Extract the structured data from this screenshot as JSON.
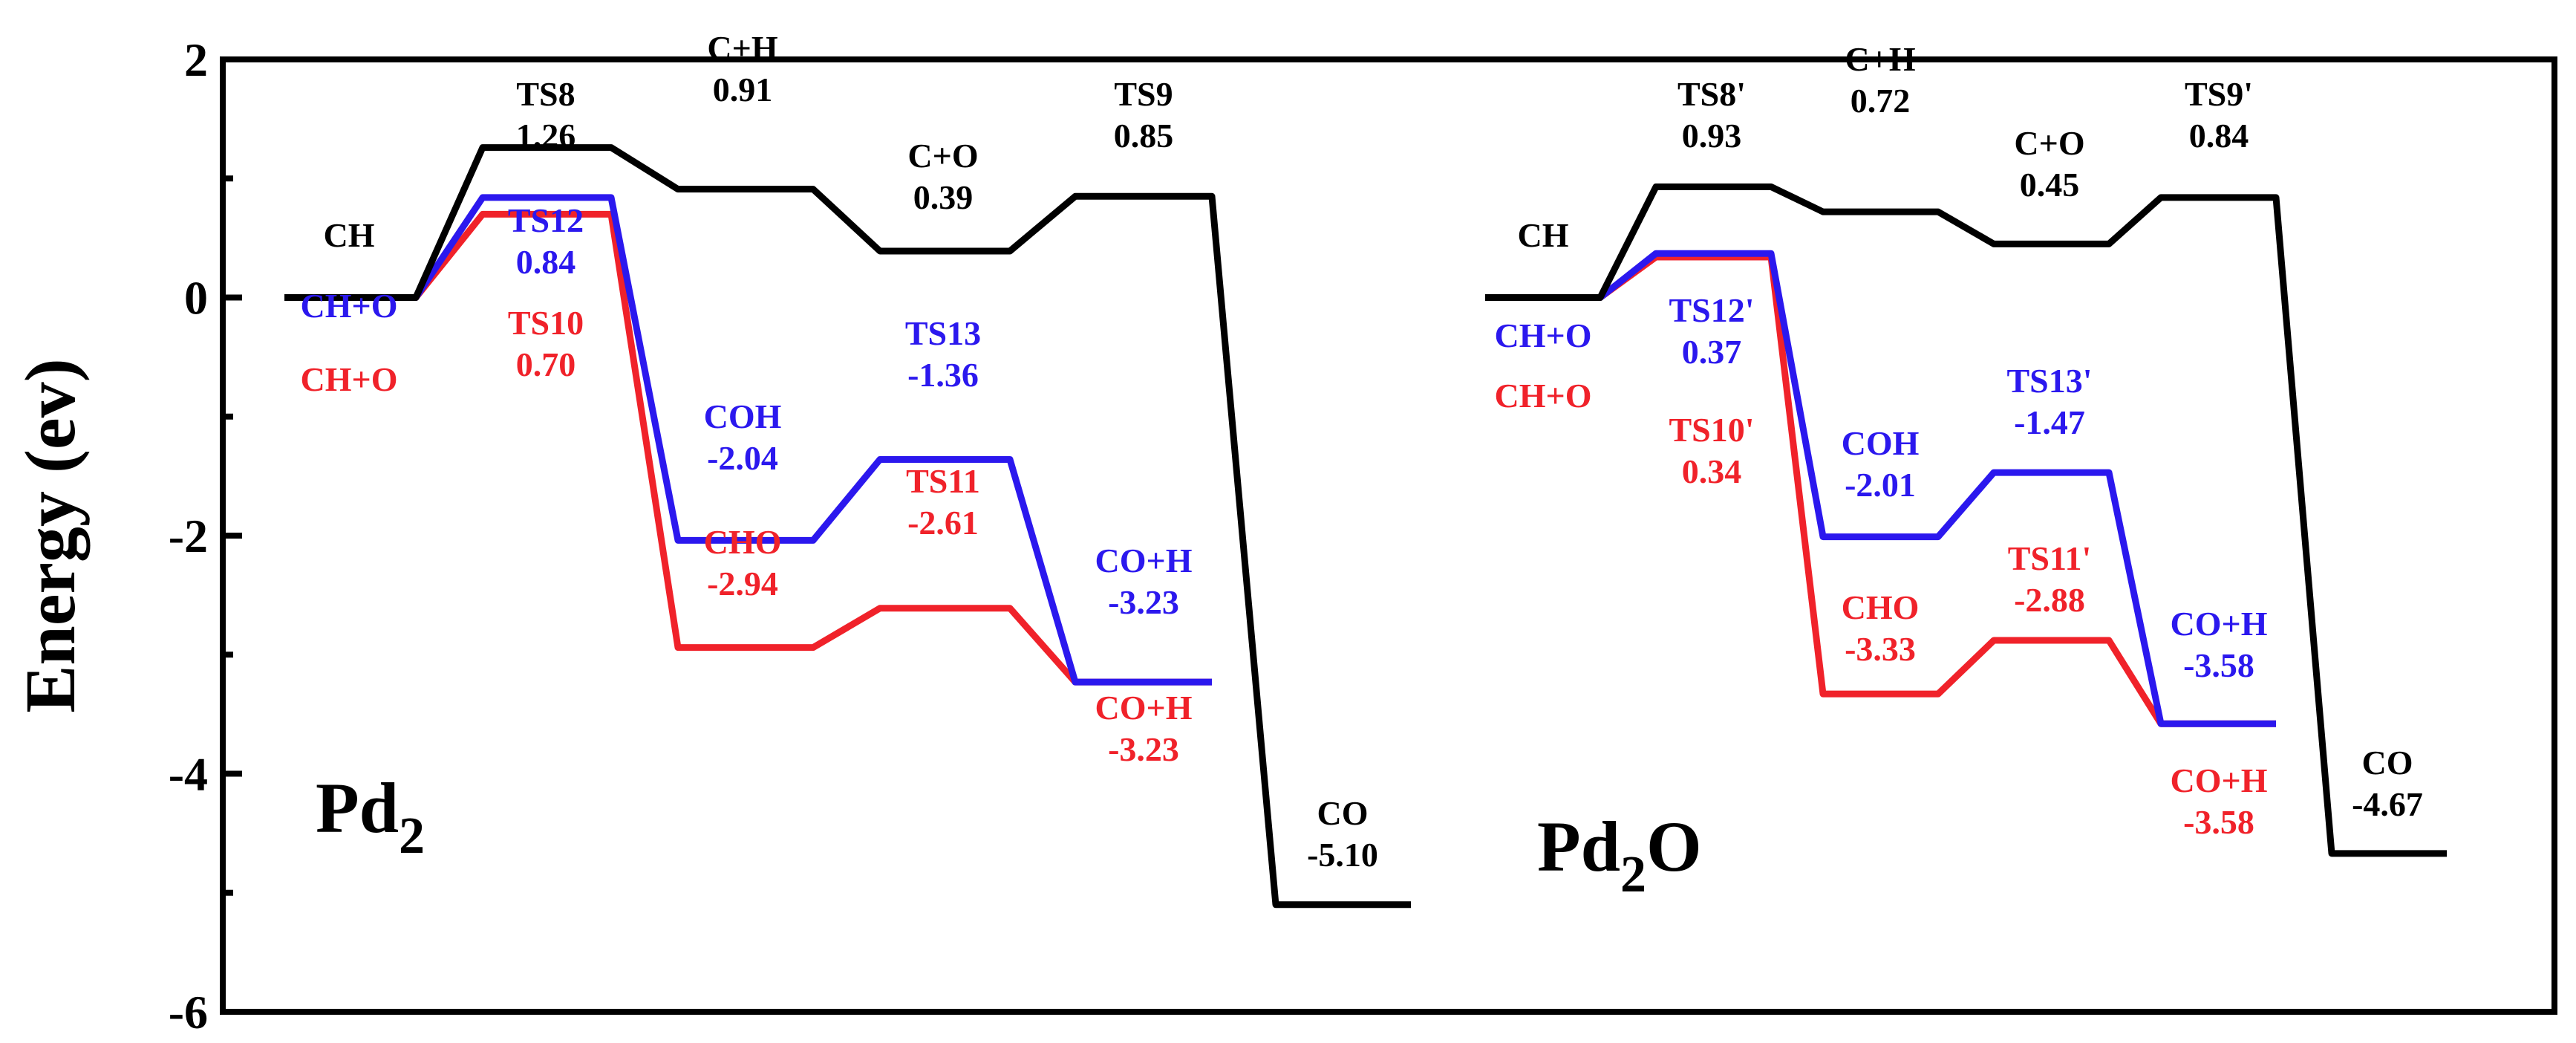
{
  "chart_data": {
    "type": "line",
    "title": "",
    "ylabel": "Energy (ev)",
    "xlabel": "",
    "ylim": [
      -6,
      2
    ],
    "yticks": [
      "2",
      "0",
      "-2",
      "-4",
      "-6"
    ],
    "colors": {
      "black": "#000000",
      "blue": "#2b18ee",
      "red": "#f0222a"
    },
    "panels": [
      {
        "name": "Pd2",
        "label_main": "Pd",
        "label_sub": "2",
        "label_tail": "",
        "series": [
          {
            "name": "CH→TS8→C+H→C+O→TS9→CO",
            "color": "black",
            "levels": [
              {
                "state": "CH",
                "value": "",
                "energy": 0
              },
              {
                "state": "TS8",
                "value": "1.26",
                "energy": 1.26
              },
              {
                "state": "C+H",
                "value": "0.91",
                "energy": 0.91
              },
              {
                "state": "C+O",
                "value": "0.39",
                "energy": 0.39
              },
              {
                "state": "TS9",
                "value": "0.85",
                "energy": 0.85
              },
              {
                "state": "CO",
                "value": "-5.10",
                "energy": -5.1
              }
            ]
          },
          {
            "name": "CH+O→TS12→COH→TS13→CO+H",
            "color": "blue",
            "levels": [
              {
                "state": "CH+O",
                "value": "",
                "energy": 0
              },
              {
                "state": "TS12",
                "value": "0.84",
                "energy": 0.84
              },
              {
                "state": "COH",
                "value": "-2.04",
                "energy": -2.04
              },
              {
                "state": "TS13",
                "value": "-1.36",
                "energy": -1.36
              },
              {
                "state": "CO+H",
                "value": "-3.23",
                "energy": -3.23
              }
            ]
          },
          {
            "name": "CH+O→TS10→CHO→TS11→CO+H",
            "color": "red",
            "levels": [
              {
                "state": "CH+O",
                "value": "",
                "energy": 0
              },
              {
                "state": "TS10",
                "value": "0.70",
                "energy": 0.7
              },
              {
                "state": "CHO",
                "value": "-2.94",
                "energy": -2.94
              },
              {
                "state": "TS11",
                "value": "-2.61",
                "energy": -2.61
              },
              {
                "state": "CO+H",
                "value": "-3.23",
                "energy": -3.23
              }
            ]
          }
        ]
      },
      {
        "name": "Pd2O",
        "label_main": "Pd",
        "label_sub": "2",
        "label_tail": "O",
        "series": [
          {
            "name": "CH→TS8'→C+H→C+O→TS9'→CO",
            "color": "black",
            "levels": [
              {
                "state": "CH",
                "value": "",
                "energy": 0
              },
              {
                "state": "TS8'",
                "value": "0.93",
                "energy": 0.93
              },
              {
                "state": "C+H",
                "value": "0.72",
                "energy": 0.72
              },
              {
                "state": "C+O",
                "value": "0.45",
                "energy": 0.45
              },
              {
                "state": "TS9'",
                "value": "0.84",
                "energy": 0.84
              },
              {
                "state": "CO",
                "value": "-4.67",
                "energy": -4.67
              }
            ]
          },
          {
            "name": "CH+O→TS12'→COH→TS13'→CO+H",
            "color": "blue",
            "levels": [
              {
                "state": "CH+O",
                "value": "",
                "energy": 0
              },
              {
                "state": "TS12'",
                "value": "0.37",
                "energy": 0.37
              },
              {
                "state": "COH",
                "value": "-2.01",
                "energy": -2.01
              },
              {
                "state": "TS13'",
                "value": "-1.47",
                "energy": -1.47
              },
              {
                "state": "CO+H",
                "value": "-3.58",
                "energy": -3.58
              }
            ]
          },
          {
            "name": "CH+O→TS10'→CHO→TS11'→CO+H",
            "color": "red",
            "levels": [
              {
                "state": "CH+O",
                "value": "",
                "energy": 0
              },
              {
                "state": "TS10'",
                "value": "0.34",
                "energy": 0.34
              },
              {
                "state": "CHO",
                "value": "-3.33",
                "energy": -3.33
              },
              {
                "state": "TS11'",
                "value": "-2.88",
                "energy": -2.88
              },
              {
                "state": "CO+H",
                "value": "-3.58",
                "energy": -3.58
              }
            ]
          }
        ]
      }
    ]
  }
}
